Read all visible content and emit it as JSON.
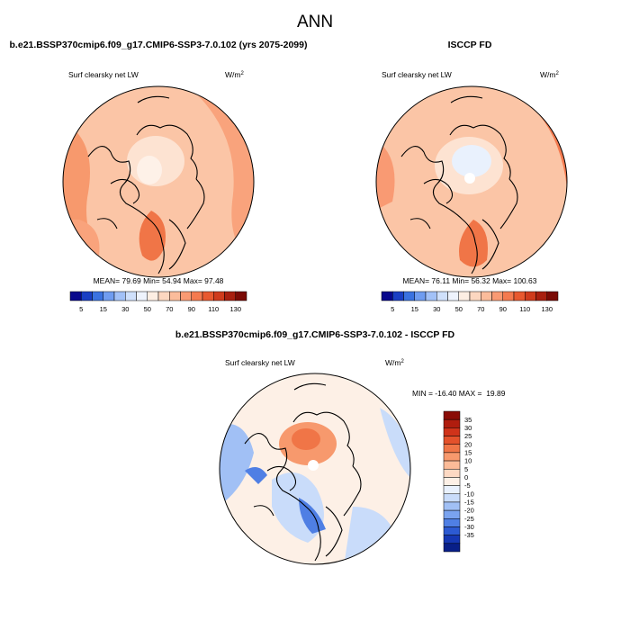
{
  "figure": {
    "title": "ANN",
    "panels": [
      {
        "id": "model",
        "title": "b.e21.BSSP370cmip6.f09_g17.CMIP6-SSP3-7.0.102 (yrs 2075-2099)",
        "variable": "Surf clearsky net LW",
        "units_base": "W/m",
        "units_exp": "2",
        "stats_text": "MEAN= 79.69  Min= 54.94  Max= 97.48"
      },
      {
        "id": "obs",
        "title": "ISCCP FD",
        "variable": "Surf clearsky net LW",
        "units_base": "W/m",
        "units_exp": "2",
        "stats_text": "MEAN= 76.11  Min= 56.32  Max= 100.63"
      },
      {
        "id": "diff",
        "title": "b.e21.BSSP370cmip6.f09_g17.CMIP6-SSP3-7.0.102 - ISCCP FD",
        "variable": "Surf clearsky net LW",
        "units_base": "W/m",
        "units_exp": "2",
        "stats_text": "MIN = -16.40 MAX =  19.89"
      }
    ],
    "colorbar_abs": {
      "tick_labels": [
        "5",
        "15",
        "30",
        "50",
        "70",
        "90",
        "110",
        "130"
      ],
      "colors": [
        "#08088c",
        "#1a3fc4",
        "#3a72e0",
        "#6f9cf0",
        "#a2c1f7",
        "#cfe0fb",
        "#eef3fd",
        "#fdeee3",
        "#fcd7c0",
        "#fbbc9b",
        "#f99a73",
        "#f47a4f",
        "#e8592f",
        "#cf3b1c",
        "#a81f0f",
        "#7a0a05"
      ]
    },
    "colorbar_diff": {
      "tick_labels": [
        "35",
        "30",
        "25",
        "20",
        "15",
        "10",
        "5",
        "0",
        "-5",
        "-10",
        "-15",
        "-20",
        "-25",
        "-30",
        "-35"
      ],
      "colors_top_to_bottom": [
        "#8a0c06",
        "#b01d0e",
        "#d0331a",
        "#e4512b",
        "#f07547",
        "#f7996d",
        "#fbbb98",
        "#fdd9c3",
        "#fdf0e6",
        "#e9f1fd",
        "#c9dcfa",
        "#a1c0f5",
        "#7aa3ef",
        "#4f7fe4",
        "#2c5ad2",
        "#1537b3",
        "#081f88"
      ]
    }
  }
}
